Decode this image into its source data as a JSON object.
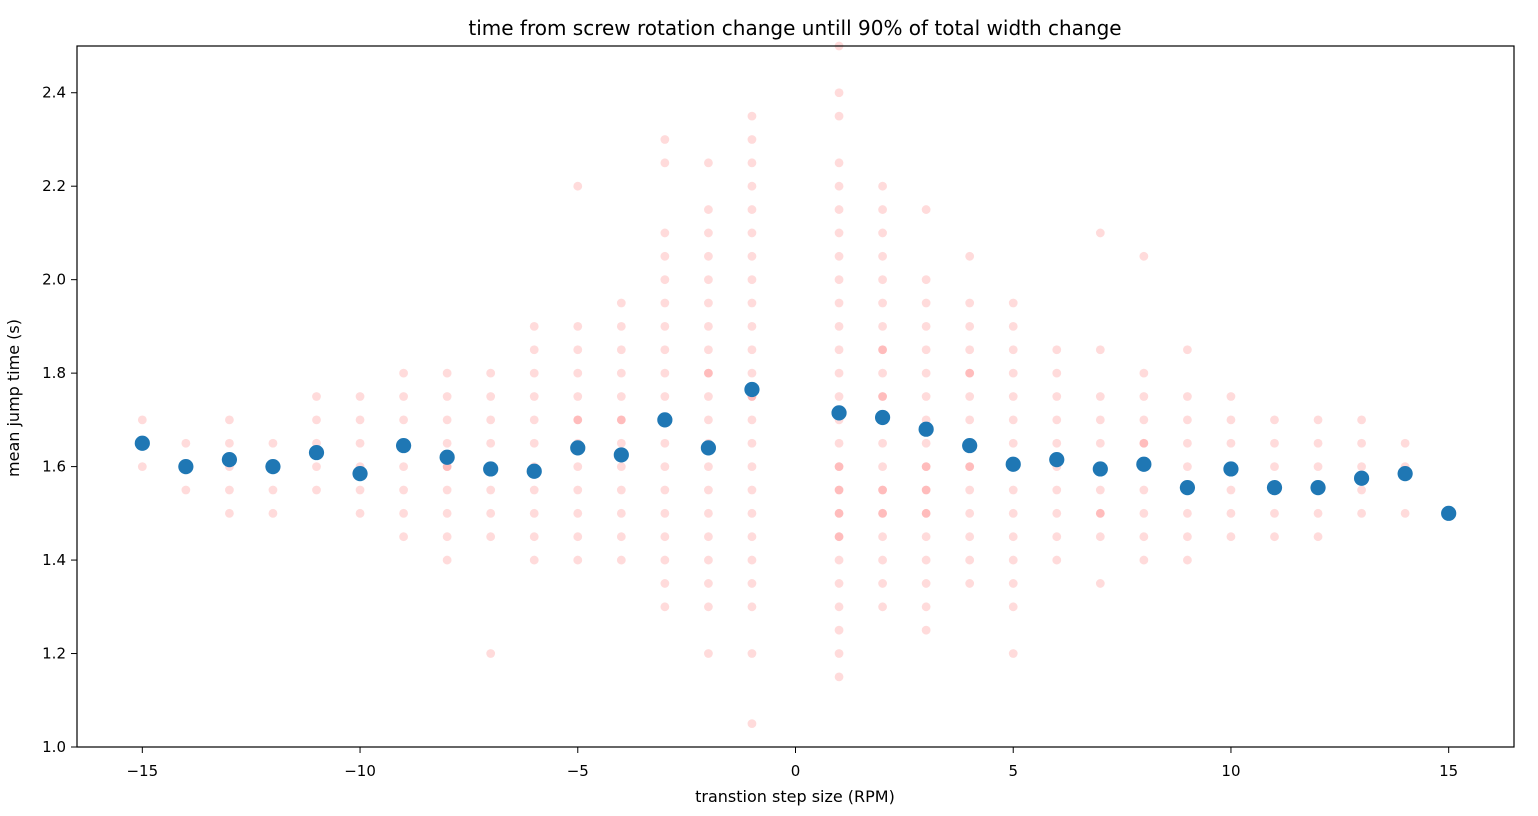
{
  "chart_data": {
    "type": "scatter",
    "title": "time from screw rotation change untill 90% of total width change",
    "xlabel": "transtion step size (RPM)",
    "ylabel": "mean jump time (s)",
    "xlim": [
      -16.5,
      16.5
    ],
    "ylim": [
      1.0,
      2.5
    ],
    "x_ticks": [
      -15,
      -10,
      -5,
      0,
      5,
      10,
      15
    ],
    "x_tick_labels": [
      "−15",
      "−10",
      "−5",
      "0",
      "5",
      "10",
      "15"
    ],
    "y_ticks": [
      1.0,
      1.2,
      1.4,
      1.6,
      1.8,
      2.0,
      2.2,
      2.4
    ],
    "y_tick_labels": [
      "1.0",
      "1.2",
      "1.4",
      "1.6",
      "1.8",
      "2.0",
      "2.2",
      "2.4"
    ],
    "grid": false,
    "colors": {
      "individual": "#ff0000",
      "mean": "#1f77b4"
    },
    "series": [
      {
        "role": "individual jump times",
        "color": "#ff0000",
        "x": [
          -15,
          -15,
          -14,
          -14,
          -13,
          -13,
          -13,
          -13,
          -13,
          -12,
          -12,
          -12,
          -12,
          -11,
          -11,
          -11,
          -11,
          -11,
          -10,
          -10,
          -10,
          -10,
          -10,
          -10,
          -9,
          -9,
          -9,
          -9,
          -9,
          -9,
          -9,
          -9,
          -8,
          -8,
          -8,
          -8,
          -8,
          -8,
          -8,
          -8,
          -8,
          -8,
          -7,
          -7,
          -7,
          -7,
          -7,
          -7,
          -7,
          -7,
          -7,
          -6,
          -6,
          -6,
          -6,
          -6,
          -6,
          -6,
          -6,
          -6,
          -6,
          -6,
          -5,
          -5,
          -5,
          -5,
          -5,
          -5,
          -5,
          -5,
          -5,
          -5,
          -5,
          -5,
          -5,
          -4,
          -4,
          -4,
          -4,
          -4,
          -4,
          -4,
          -4,
          -4,
          -4,
          -4,
          -4,
          -4,
          -3,
          -3,
          -3,
          -3,
          -3,
          -3,
          -3,
          -3,
          -3,
          -3,
          -3,
          -3,
          -3,
          -3,
          -3,
          -3,
          -3,
          -3,
          -3,
          -2,
          -2,
          -2,
          -2,
          -2,
          -2,
          -2,
          -2,
          -2,
          -2,
          -2,
          -2,
          -2,
          -2,
          -2,
          -2,
          -2,
          -2,
          -2,
          -2,
          -2,
          -1,
          -1,
          -1,
          -1,
          -1,
          -1,
          -1,
          -1,
          -1,
          -1,
          -1,
          -1,
          -1,
          -1,
          -1,
          -1,
          -1,
          -1,
          -1,
          -1,
          -1,
          -1,
          -1,
          -1,
          -1,
          1,
          1,
          1,
          1,
          1,
          1,
          1,
          1,
          1,
          1,
          1,
          1,
          1,
          1,
          1,
          1,
          1,
          1,
          1,
          1,
          1,
          1,
          1,
          1,
          1,
          1,
          1,
          1,
          1,
          1,
          2,
          2,
          2,
          2,
          2,
          2,
          2,
          2,
          2,
          2,
          2,
          2,
          2,
          2,
          2,
          2,
          2,
          2,
          2,
          2,
          2,
          2,
          2,
          3,
          3,
          3,
          3,
          3,
          3,
          3,
          3,
          3,
          3,
          3,
          3,
          3,
          3,
          3,
          3,
          3,
          3,
          3,
          3,
          4,
          4,
          4,
          4,
          4,
          4,
          4,
          4,
          4,
          4,
          4,
          4,
          4,
          4,
          4,
          4,
          5,
          5,
          5,
          5,
          5,
          5,
          5,
          5,
          5,
          5,
          5,
          5,
          5,
          5,
          5,
          6,
          6,
          6,
          6,
          6,
          6,
          6,
          6,
          6,
          6,
          7,
          7,
          7,
          7,
          7,
          7,
          7,
          7,
          7,
          7,
          7,
          8,
          8,
          8,
          8,
          8,
          8,
          8,
          8,
          8,
          8,
          8,
          9,
          9,
          9,
          9,
          9,
          9,
          9,
          9,
          9,
          10,
          10,
          10,
          10,
          10,
          10,
          10,
          11,
          11,
          11,
          11,
          11,
          11,
          12,
          12,
          12,
          12,
          12,
          12,
          13,
          13,
          13,
          13,
          13,
          14,
          14,
          14
        ],
        "y": [
          1.7,
          1.6,
          1.65,
          1.55,
          1.7,
          1.65,
          1.6,
          1.55,
          1.5,
          1.65,
          1.6,
          1.55,
          1.5,
          1.75,
          1.7,
          1.65,
          1.6,
          1.55,
          1.75,
          1.7,
          1.65,
          1.6,
          1.55,
          1.5,
          1.8,
          1.75,
          1.7,
          1.65,
          1.6,
          1.55,
          1.5,
          1.45,
          1.8,
          1.75,
          1.7,
          1.65,
          1.6,
          1.55,
          1.5,
          1.45,
          1.4,
          1.6,
          1.8,
          1.75,
          1.7,
          1.65,
          1.6,
          1.55,
          1.5,
          1.45,
          1.2,
          1.9,
          1.85,
          1.8,
          1.75,
          1.7,
          1.65,
          1.6,
          1.55,
          1.5,
          1.45,
          1.4,
          2.2,
          1.9,
          1.85,
          1.8,
          1.75,
          1.7,
          1.65,
          1.6,
          1.55,
          1.5,
          1.45,
          1.4,
          1.7,
          1.95,
          1.9,
          1.85,
          1.8,
          1.75,
          1.7,
          1.65,
          1.6,
          1.55,
          1.5,
          1.45,
          1.4,
          1.7,
          2.3,
          2.25,
          2.1,
          2.05,
          2.0,
          1.95,
          1.9,
          1.85,
          1.8,
          1.75,
          1.7,
          1.65,
          1.6,
          1.55,
          1.5,
          1.45,
          1.4,
          1.35,
          1.3,
          2.25,
          2.15,
          2.1,
          2.05,
          2.0,
          1.95,
          1.9,
          1.85,
          1.8,
          1.75,
          1.7,
          1.65,
          1.6,
          1.55,
          1.5,
          1.45,
          1.4,
          1.35,
          1.3,
          1.2,
          1.8,
          2.35,
          2.3,
          2.25,
          2.2,
          2.15,
          2.1,
          2.05,
          2.0,
          1.95,
          1.9,
          1.85,
          1.8,
          1.75,
          1.7,
          1.65,
          1.6,
          1.55,
          1.5,
          1.45,
          1.4,
          1.35,
          1.3,
          1.2,
          1.05,
          1.75,
          2.5,
          2.4,
          2.35,
          2.25,
          2.2,
          2.15,
          2.1,
          2.05,
          2.0,
          1.95,
          1.9,
          1.85,
          1.8,
          1.75,
          1.7,
          1.65,
          1.6,
          1.55,
          1.5,
          1.45,
          1.4,
          1.35,
          1.3,
          1.25,
          1.2,
          1.15,
          1.45,
          1.6,
          1.55,
          1.5,
          2.2,
          2.15,
          2.1,
          2.05,
          2.0,
          1.95,
          1.9,
          1.85,
          1.8,
          1.75,
          1.7,
          1.65,
          1.6,
          1.55,
          1.5,
          1.45,
          1.4,
          1.35,
          1.3,
          1.85,
          1.75,
          1.55,
          1.5,
          2.15,
          2.0,
          1.95,
          1.9,
          1.85,
          1.8,
          1.75,
          1.7,
          1.65,
          1.6,
          1.55,
          1.5,
          1.45,
          1.4,
          1.35,
          1.3,
          1.25,
          1.6,
          1.55,
          1.5,
          2.05,
          1.95,
          1.9,
          1.85,
          1.8,
          1.75,
          1.7,
          1.65,
          1.6,
          1.55,
          1.5,
          1.45,
          1.4,
          1.35,
          1.6,
          1.8,
          1.95,
          1.9,
          1.85,
          1.8,
          1.75,
          1.7,
          1.65,
          1.6,
          1.55,
          1.5,
          1.45,
          1.4,
          1.35,
          1.3,
          1.2,
          1.85,
          1.8,
          1.75,
          1.7,
          1.65,
          1.6,
          1.55,
          1.5,
          1.45,
          1.4,
          2.1,
          1.85,
          1.75,
          1.7,
          1.65,
          1.6,
          1.55,
          1.5,
          1.45,
          1.35,
          1.5,
          2.05,
          1.8,
          1.75,
          1.7,
          1.65,
          1.6,
          1.55,
          1.5,
          1.45,
          1.4,
          1.65,
          1.85,
          1.75,
          1.7,
          1.65,
          1.6,
          1.55,
          1.5,
          1.45,
          1.4,
          1.75,
          1.7,
          1.65,
          1.6,
          1.55,
          1.5,
          1.45,
          1.7,
          1.65,
          1.6,
          1.55,
          1.5,
          1.45,
          1.7,
          1.65,
          1.6,
          1.55,
          1.5,
          1.45,
          1.7,
          1.65,
          1.6,
          1.55,
          1.5,
          1.65,
          1.6,
          1.5
        ]
      },
      {
        "role": "mean per step size",
        "color": "#1f77b4",
        "x": [
          -15,
          -14,
          -13,
          -12,
          -11,
          -10,
          -9,
          -8,
          -7,
          -6,
          -5,
          -4,
          -3,
          -2,
          -1,
          1,
          2,
          3,
          4,
          5,
          6,
          7,
          8,
          9,
          10,
          11,
          12,
          13,
          14,
          15
        ],
        "y": [
          1.65,
          1.6,
          1.615,
          1.6,
          1.63,
          1.585,
          1.645,
          1.62,
          1.595,
          1.59,
          1.64,
          1.625,
          1.7,
          1.64,
          1.765,
          1.715,
          1.705,
          1.68,
          1.645,
          1.605,
          1.615,
          1.595,
          1.605,
          1.555,
          1.595,
          1.555,
          1.555,
          1.575,
          1.585,
          1.5
        ]
      }
    ]
  }
}
